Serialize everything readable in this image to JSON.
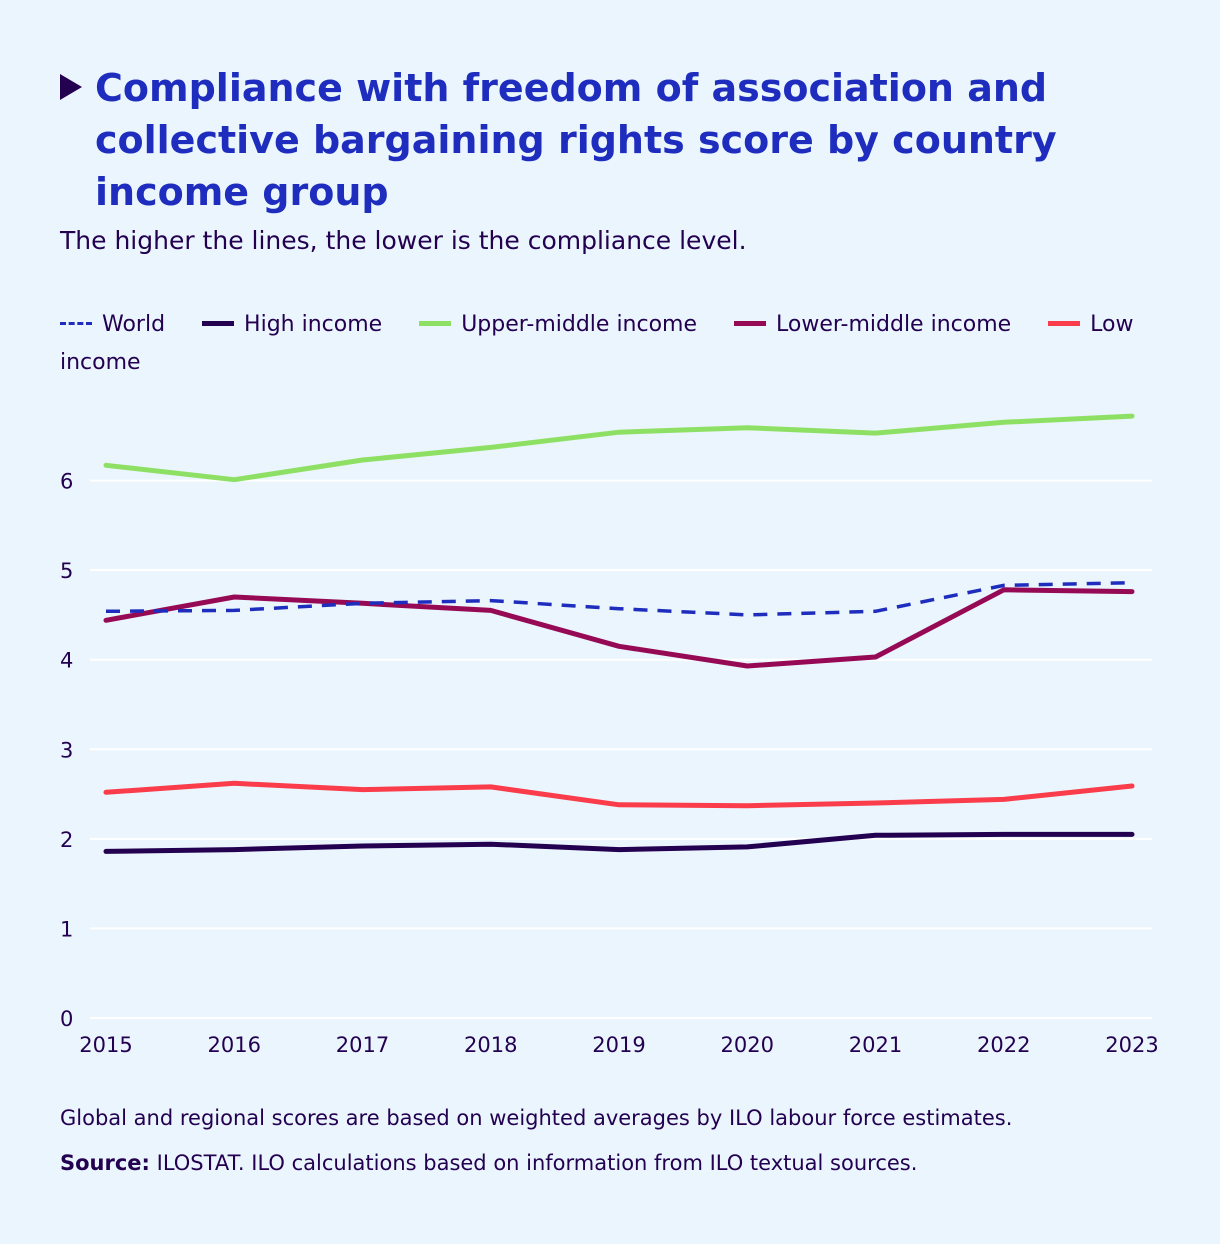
{
  "title": "Compliance with freedom of association and collective bargaining rights score by country income group",
  "subtitle": "The higher the lines, the lower is the compliance level.",
  "note": "Global and regional scores are based on weighted averages by ILO labour force estimates.",
  "source": {
    "label": "Source:",
    "text": " ILOSTAT. ILO calculations based on information from ILO textual sources."
  },
  "chart_data": {
    "type": "line",
    "title": "Compliance with freedom of association and collective bargaining rights score by country income group",
    "xlabel": "",
    "ylabel": "",
    "x": [
      "2015",
      "2016",
      "2017",
      "2018",
      "2019",
      "2020",
      "2021",
      "2022",
      "2023"
    ],
    "yticks": [
      "0",
      "1",
      "2",
      "3",
      "4",
      "5",
      "6"
    ],
    "ylim": [
      0,
      7
    ],
    "grid": true,
    "legend_position": "top",
    "series": [
      {
        "name": "World",
        "color": "#1e2dbe",
        "dashed": true,
        "values": [
          4.54,
          4.55,
          4.63,
          4.66,
          4.57,
          4.5,
          4.54,
          4.83,
          4.86
        ]
      },
      {
        "name": "High income",
        "color": "#230050",
        "dashed": false,
        "values": [
          1.86,
          1.88,
          1.92,
          1.94,
          1.88,
          1.91,
          2.04,
          2.05,
          2.05
        ]
      },
      {
        "name": "Upper-middle income",
        "color": "#8ee065",
        "dashed": false,
        "values": [
          6.17,
          6.01,
          6.23,
          6.37,
          6.54,
          6.59,
          6.53,
          6.65,
          6.72
        ]
      },
      {
        "name": "Lower-middle income",
        "color": "#960a55",
        "dashed": false,
        "values": [
          4.44,
          4.7,
          4.63,
          4.55,
          4.15,
          3.93,
          4.03,
          4.78,
          4.76
        ]
      },
      {
        "name": "Low income",
        "color": "#fa3c4b",
        "dashed": false,
        "values": [
          2.52,
          2.62,
          2.55,
          2.58,
          2.38,
          2.37,
          2.4,
          2.44,
          2.59
        ]
      }
    ]
  }
}
